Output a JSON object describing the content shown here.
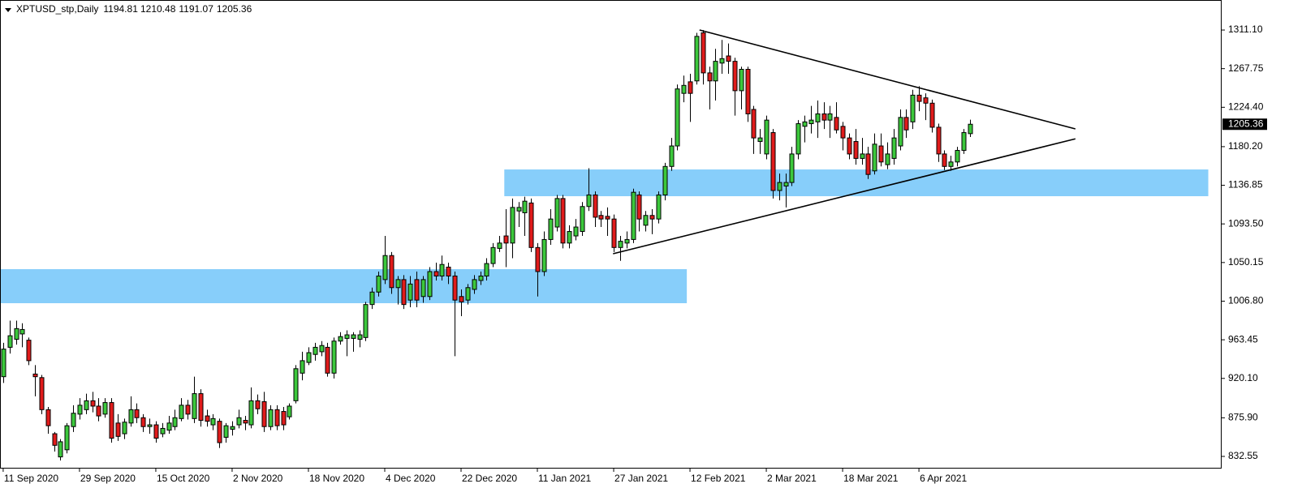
{
  "chart_data": {
    "type": "candlestick",
    "title": "XPTUSD_stp,Daily",
    "up_color": "#3cc83c",
    "down_color": "#e01b1b",
    "wick_color": "#000000",
    "categories": [
      "11 Sep 2020",
      null,
      null,
      null,
      null,
      null,
      null,
      null,
      null,
      null,
      null,
      null,
      "29 Sep 2020",
      null,
      null,
      null,
      null,
      null,
      null,
      null,
      null,
      null,
      null,
      null,
      "15 Oct 2020",
      null,
      null,
      null,
      null,
      null,
      null,
      null,
      null,
      null,
      null,
      null,
      "2 Nov 2020",
      null,
      null,
      null,
      null,
      null,
      null,
      null,
      null,
      null,
      null,
      null,
      "18 Nov 2020",
      null,
      null,
      null,
      null,
      null,
      null,
      null,
      null,
      null,
      null,
      null,
      "4 Dec 2020",
      null,
      null,
      null,
      null,
      null,
      null,
      null,
      null,
      null,
      null,
      null,
      "22 Dec 2020",
      null,
      null,
      null,
      null,
      null,
      null,
      null,
      null,
      null,
      null,
      null,
      "11 Jan 2021",
      null,
      null,
      null,
      null,
      null,
      null,
      null,
      null,
      null,
      null,
      null,
      "27 Jan 2021",
      null,
      null,
      null,
      null,
      null,
      null,
      null,
      null,
      null,
      null,
      null,
      "12 Feb 2021",
      null,
      null,
      null,
      null,
      null,
      null,
      null,
      null,
      null,
      null,
      null,
      "2 Mar 2021",
      null,
      null,
      null,
      null,
      null,
      null,
      null,
      null,
      null,
      null,
      null,
      "18 Mar 2021",
      null,
      null,
      null,
      null,
      null,
      null,
      null,
      null,
      null,
      null,
      null,
      "6 Apr 2021",
      null,
      null,
      null,
      null,
      null,
      null,
      null,
      null
    ],
    "candles": [
      [
        922,
        960,
        915,
        953
      ],
      [
        955,
        985,
        948,
        968
      ],
      [
        964,
        985,
        958,
        976
      ],
      [
        970,
        982,
        955,
        975
      ],
      [
        963,
        966,
        935,
        940
      ],
      [
        925,
        935,
        900,
        922
      ],
      [
        921,
        924,
        880,
        885
      ],
      [
        885,
        888,
        858,
        867
      ],
      [
        858,
        860,
        838,
        845
      ],
      [
        832,
        852,
        828,
        849
      ],
      [
        840,
        870,
        836,
        867
      ],
      [
        866,
        890,
        860,
        881
      ],
      [
        880,
        898,
        874,
        890
      ],
      [
        885,
        903,
        880,
        895
      ],
      [
        895,
        905,
        882,
        889
      ],
      [
        889,
        898,
        872,
        878
      ],
      [
        880,
        898,
        876,
        893
      ],
      [
        893,
        898,
        848,
        853
      ],
      [
        870,
        880,
        850,
        855
      ],
      [
        858,
        875,
        852,
        871
      ],
      [
        870,
        900,
        866,
        885
      ],
      [
        885,
        892,
        870,
        876
      ],
      [
        876,
        880,
        860,
        866
      ],
      [
        866,
        875,
        858,
        868
      ],
      [
        868,
        872,
        848,
        853
      ],
      [
        858,
        870,
        854,
        864
      ],
      [
        862,
        878,
        858,
        870
      ],
      [
        866,
        885,
        862,
        876
      ],
      [
        875,
        898,
        872,
        890
      ],
      [
        890,
        896,
        874,
        880
      ],
      [
        875,
        922,
        870,
        903
      ],
      [
        903,
        908,
        866,
        873
      ],
      [
        878,
        885,
        866,
        872
      ],
      [
        868,
        880,
        862,
        875
      ],
      [
        872,
        875,
        842,
        848
      ],
      [
        854,
        870,
        848,
        867
      ],
      [
        863,
        872,
        856,
        866
      ],
      [
        868,
        885,
        864,
        876
      ],
      [
        873,
        878,
        862,
        870
      ],
      [
        868,
        910,
        864,
        895
      ],
      [
        895,
        902,
        880,
        886
      ],
      [
        894,
        905,
        860,
        866
      ],
      [
        866,
        890,
        862,
        885
      ],
      [
        885,
        890,
        862,
        867
      ],
      [
        883,
        888,
        862,
        868
      ],
      [
        877,
        892,
        874,
        889
      ],
      [
        895,
        935,
        892,
        931
      ],
      [
        926,
        950,
        918,
        940
      ],
      [
        938,
        955,
        935,
        949
      ],
      [
        947,
        960,
        940,
        955
      ],
      [
        950,
        962,
        945,
        957
      ],
      [
        955,
        960,
        922,
        926
      ],
      [
        926,
        966,
        920,
        962
      ],
      [
        962,
        972,
        958,
        967
      ],
      [
        965,
        974,
        945,
        969
      ],
      [
        965,
        972,
        950,
        969
      ],
      [
        964,
        974,
        955,
        969
      ],
      [
        966,
        1006,
        962,
        1003
      ],
      [
        1003,
        1022,
        998,
        1017
      ],
      [
        1017,
        1040,
        1012,
        1035
      ],
      [
        1031,
        1080,
        1026,
        1058
      ],
      [
        1058,
        1062,
        1015,
        1022
      ],
      [
        1022,
        1035,
        1003,
        1031
      ],
      [
        1031,
        1036,
        998,
        1003
      ],
      [
        1008,
        1035,
        1000,
        1026
      ],
      [
        1031,
        1040,
        1000,
        1008
      ],
      [
        1012,
        1035,
        1005,
        1031
      ],
      [
        1012,
        1045,
        1008,
        1040
      ],
      [
        1040,
        1050,
        1030,
        1035
      ],
      [
        1035,
        1058,
        1030,
        1048
      ],
      [
        1045,
        1050,
        1026,
        1035
      ],
      [
        1035,
        1040,
        945,
        1008
      ],
      [
        1012,
        1020,
        990,
        1006
      ],
      [
        1008,
        1026,
        1003,
        1022
      ],
      [
        1020,
        1036,
        1015,
        1031
      ],
      [
        1030,
        1040,
        1025,
        1035
      ],
      [
        1035,
        1055,
        1030,
        1049
      ],
      [
        1049,
        1072,
        1045,
        1067
      ],
      [
        1066,
        1080,
        1062,
        1072
      ],
      [
        1080,
        1110,
        1045,
        1072
      ],
      [
        1072,
        1122,
        1055,
        1112
      ],
      [
        1108,
        1118,
        1090,
        1112
      ],
      [
        1106,
        1124,
        1080,
        1119
      ],
      [
        1117,
        1122,
        1062,
        1067
      ],
      [
        1067,
        1072,
        1012,
        1040
      ],
      [
        1040,
        1085,
        1035,
        1076
      ],
      [
        1076,
        1110,
        1070,
        1099
      ],
      [
        1090,
        1126,
        1085,
        1122
      ],
      [
        1122,
        1126,
        1066,
        1072
      ],
      [
        1072,
        1092,
        1066,
        1085
      ],
      [
        1080,
        1099,
        1075,
        1090
      ],
      [
        1085,
        1118,
        1080,
        1113
      ],
      [
        1113,
        1156,
        1108,
        1126
      ],
      [
        1126,
        1130,
        1090,
        1101
      ],
      [
        1103,
        1108,
        1090,
        1099
      ],
      [
        1102,
        1112,
        1080,
        1099
      ],
      [
        1099,
        1104,
        1062,
        1067
      ],
      [
        1067,
        1080,
        1052,
        1074
      ],
      [
        1072,
        1085,
        1066,
        1076
      ],
      [
        1076,
        1133,
        1072,
        1129
      ],
      [
        1126,
        1130,
        1085,
        1099
      ],
      [
        1092,
        1108,
        1085,
        1103
      ],
      [
        1103,
        1110,
        1082,
        1099
      ],
      [
        1099,
        1130,
        1094,
        1126
      ],
      [
        1126,
        1162,
        1120,
        1158
      ],
      [
        1158,
        1190,
        1153,
        1181
      ],
      [
        1181,
        1250,
        1176,
        1245
      ],
      [
        1240,
        1260,
        1230,
        1249
      ],
      [
        1253,
        1262,
        1208,
        1240
      ],
      [
        1254,
        1308,
        1250,
        1304
      ],
      [
        1308,
        1311,
        1250,
        1263
      ],
      [
        1263,
        1270,
        1222,
        1254
      ],
      [
        1254,
        1290,
        1232,
        1276
      ],
      [
        1274,
        1300,
        1262,
        1279
      ],
      [
        1282,
        1296,
        1262,
        1276
      ],
      [
        1276,
        1280,
        1215,
        1243
      ],
      [
        1243,
        1270,
        1222,
        1267
      ],
      [
        1267,
        1270,
        1208,
        1217
      ],
      [
        1222,
        1226,
        1172,
        1190
      ],
      [
        1186,
        1200,
        1172,
        1190
      ],
      [
        1172,
        1215,
        1166,
        1210
      ],
      [
        1196,
        1200,
        1122,
        1131
      ],
      [
        1131,
        1150,
        1120,
        1140
      ],
      [
        1136,
        1150,
        1112,
        1140
      ],
      [
        1140,
        1180,
        1136,
        1172
      ],
      [
        1172,
        1210,
        1166,
        1206
      ],
      [
        1203,
        1215,
        1185,
        1208
      ],
      [
        1206,
        1226,
        1195,
        1210
      ],
      [
        1208,
        1232,
        1190,
        1217
      ],
      [
        1217,
        1230,
        1200,
        1210
      ],
      [
        1210,
        1226,
        1190,
        1217
      ],
      [
        1213,
        1230,
        1195,
        1199
      ],
      [
        1203,
        1208,
        1176,
        1190
      ],
      [
        1190,
        1195,
        1166,
        1172
      ],
      [
        1186,
        1200,
        1160,
        1167
      ],
      [
        1167,
        1190,
        1160,
        1172
      ],
      [
        1172,
        1180,
        1144,
        1149
      ],
      [
        1153,
        1195,
        1149,
        1183
      ],
      [
        1181,
        1195,
        1158,
        1163
      ],
      [
        1160,
        1185,
        1155,
        1172
      ],
      [
        1167,
        1200,
        1160,
        1190
      ],
      [
        1181,
        1222,
        1176,
        1213
      ],
      [
        1213,
        1222,
        1190,
        1199
      ],
      [
        1208,
        1244,
        1200,
        1238
      ],
      [
        1238,
        1248,
        1220,
        1231
      ],
      [
        1235,
        1240,
        1210,
        1229
      ],
      [
        1229,
        1233,
        1196,
        1202
      ],
      [
        1202,
        1206,
        1163,
        1172
      ],
      [
        1172,
        1176,
        1154,
        1158
      ],
      [
        1158,
        1170,
        1153,
        1163
      ],
      [
        1163,
        1180,
        1158,
        1176
      ],
      [
        1176,
        1200,
        1172,
        1196
      ],
      [
        1194.81,
        1210.48,
        1191.07,
        1205.36
      ]
    ],
    "xlim": [
      -0.5,
      191.6
    ],
    "ylim": [
      818.9,
      1344.8
    ],
    "yticks": [
      832.55,
      {
        "value": 875.9,
        "label": "875.90"
      },
      {
        "value": 920.1,
        "label": "920.10"
      },
      963.45,
      {
        "value": 1006.8,
        "label": "1006.80"
      },
      1050.15,
      {
        "value": 1093.5,
        "label": "1093.50"
      },
      1136.85,
      {
        "value": 1180.2,
        "label": "1180.20"
      },
      {
        "value": 1224.4,
        "label": "1224.40"
      },
      1267.75,
      {
        "value": 1311.1,
        "label": "1311.10"
      }
    ],
    "zones": [
      {
        "x": [
          -0.5,
          107.5
        ],
        "y": [
          1004.5,
          1042.7
        ],
        "color": "#87cefa"
      },
      {
        "x": [
          78.8,
          189.5
        ],
        "y": [
          1124.6,
          1154.6
        ],
        "color": "#87cefa"
      }
    ],
    "trendlines": [
      {
        "x": [
          109.5,
          168.6
        ],
        "y": [
          1311.1,
          1200.1
        ],
        "color": "#000000"
      },
      {
        "x": [
          95.9,
          168.6
        ],
        "y": [
          1060,
          1189
        ],
        "color": "#000000"
      }
    ]
  }
}
